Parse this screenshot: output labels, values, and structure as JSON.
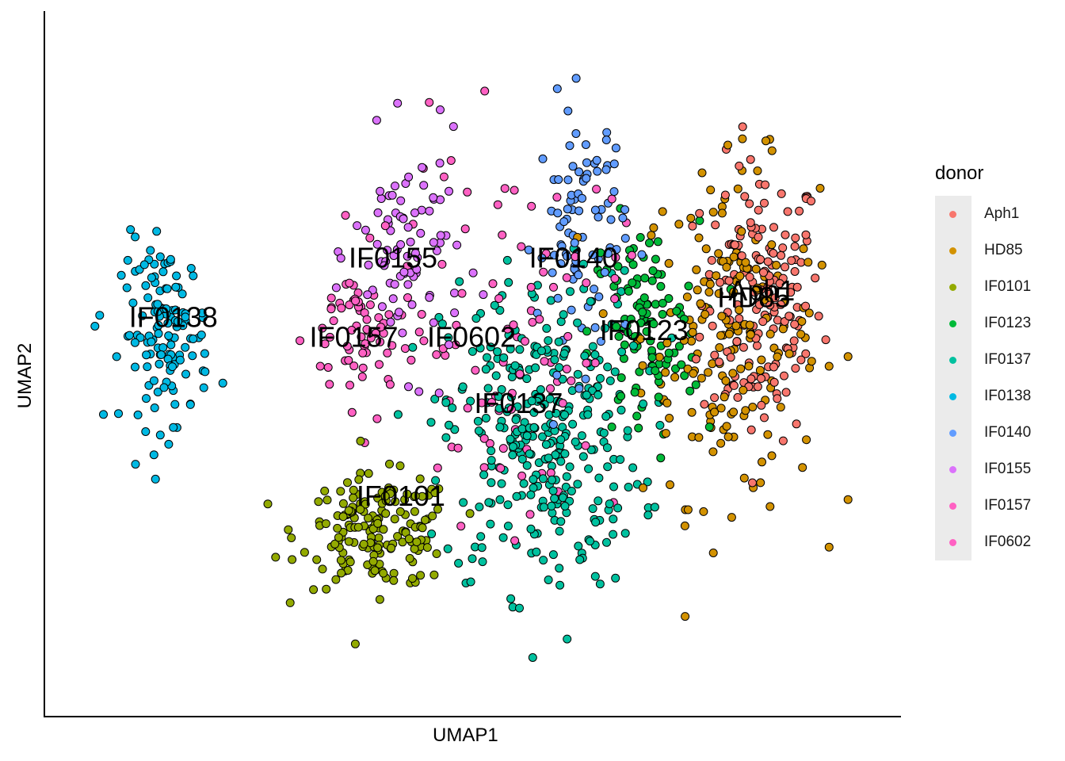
{
  "chart_data": {
    "type": "scatter",
    "title": "",
    "xlabel": "UMAP1",
    "ylabel": "UMAP2",
    "grid": false,
    "axis_ticks": false,
    "legend_placement": "right",
    "legend_title": "donor",
    "xlim": [
      0,
      100
    ],
    "ylim": [
      0,
      100
    ],
    "series": [
      {
        "name": "Aph1",
        "color": "#F8766D",
        "center": [
          87,
          60
        ],
        "spread": [
          5.5,
          15
        ],
        "count": 170,
        "label_pos": [
          87,
          60
        ]
      },
      {
        "name": "HD85",
        "color": "#D39200",
        "center": [
          83,
          55
        ],
        "spread": [
          8,
          18
        ],
        "count": 190,
        "label_pos": [
          86,
          59
        ]
      },
      {
        "name": "IF0101",
        "color": "#93AA00",
        "center": [
          38,
          25
        ],
        "spread": [
          7,
          6
        ],
        "count": 170,
        "label_pos": [
          41,
          29
        ]
      },
      {
        "name": "IF0123",
        "color": "#00BA38",
        "center": [
          72,
          55
        ],
        "spread": [
          5,
          12
        ],
        "count": 110,
        "label_pos": [
          72,
          54
        ]
      },
      {
        "name": "IF0137",
        "color": "#00C19F",
        "center": [
          59,
          40
        ],
        "spread": [
          9,
          17
        ],
        "count": 340,
        "label_pos": [
          56,
          43
        ]
      },
      {
        "name": "IF0138",
        "color": "#00B9E3",
        "center": [
          11,
          55
        ],
        "spread": [
          4,
          10
        ],
        "count": 130,
        "label_pos": [
          12,
          56
        ]
      },
      {
        "name": "IF0140",
        "color": "#619CFF",
        "center": [
          64,
          70
        ],
        "spread": [
          4,
          14
        ],
        "count": 90,
        "label_pos": [
          63,
          65
        ]
      },
      {
        "name": "IF0155",
        "color": "#DB72FB",
        "center": [
          42,
          67
        ],
        "spread": [
          5,
          12
        ],
        "count": 90,
        "label_pos": [
          40,
          65
        ]
      },
      {
        "name": "IF0157",
        "color": "#FF61C3",
        "center": [
          36,
          55
        ],
        "spread": [
          5,
          8
        ],
        "count": 70,
        "label_pos": [
          35,
          53
        ]
      },
      {
        "name": "IF0602",
        "color": "#FF61C3",
        "center": [
          55,
          55
        ],
        "spread": [
          10,
          20
        ],
        "count": 90,
        "label_pos": [
          50,
          53
        ]
      }
    ]
  }
}
